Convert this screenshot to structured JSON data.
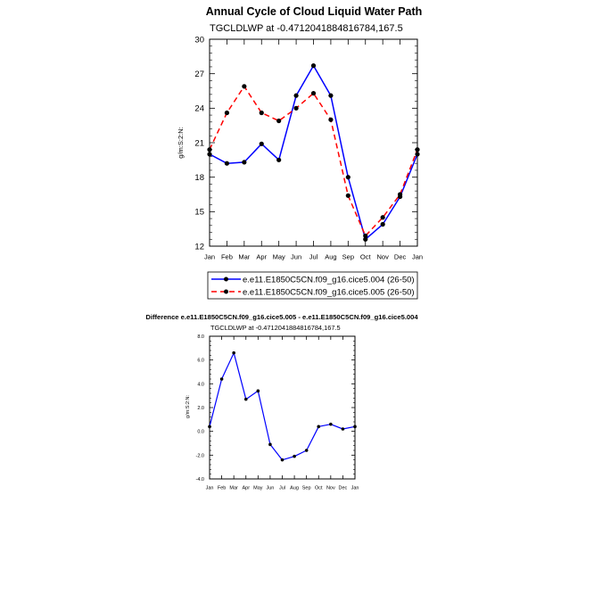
{
  "chart_data": [
    {
      "type": "line",
      "title": "Annual Cycle of Cloud Liquid Water Path",
      "subtitle": "TGCLDLWP at -0.4712041884816784,167.5",
      "xlabel": "",
      "ylabel": "g/m:S:2:N:",
      "categories": [
        "Jan",
        "Feb",
        "Mar",
        "Apr",
        "May",
        "Jun",
        "Jul",
        "Aug",
        "Sep",
        "Oct",
        "Nov",
        "Dec",
        "Jan"
      ],
      "ylim": [
        12,
        30
      ],
      "yticks": [
        12,
        15,
        18,
        21,
        24,
        27,
        30
      ],
      "ytick_labels": [
        "12",
        "15",
        "18",
        "21",
        "24",
        "27",
        "30"
      ],
      "series": [
        {
          "name": "e.e11.E1850C5CN.f09_g16.cice5.004 (26-50)",
          "color": "#0000ff",
          "dash": "solid",
          "values": [
            20.0,
            19.2,
            19.3,
            20.9,
            19.5,
            25.1,
            27.7,
            25.1,
            18.0,
            12.6,
            13.9,
            16.3,
            20.0
          ]
        },
        {
          "name": "e.e11.E1850C5CN.f09_g16.cice5.005 (26-50)",
          "color": "#ff0000",
          "dash": "dashed",
          "values": [
            20.4,
            23.6,
            25.9,
            23.6,
            22.9,
            24.0,
            25.3,
            23.0,
            16.4,
            12.9,
            14.5,
            16.5,
            20.4
          ]
        }
      ]
    },
    {
      "type": "line",
      "title": "Difference e.e11.E1850C5CN.f09_g16.cice5.005 - e.e11.E1850C5CN.f09_g16.cice5.004",
      "subtitle": "TGCLDLWP at -0.4712041884816784,167.5",
      "xlabel": "",
      "ylabel": "g/m:S:2:N:",
      "categories": [
        "Jan",
        "Feb",
        "Mar",
        "Apr",
        "May",
        "Jun",
        "Jul",
        "Aug",
        "Sep",
        "Oct",
        "Nov",
        "Dec",
        "Jan"
      ],
      "ylim": [
        -4.0,
        8.0
      ],
      "yticks": [
        -4,
        -2,
        0,
        2,
        4,
        6,
        8
      ],
      "ytick_labels": [
        "-4.0",
        "-2.0",
        "0.0",
        "2.0",
        "4.0",
        "6.0",
        "8.0"
      ],
      "series": [
        {
          "name": "Difference",
          "color": "#0000ff",
          "dash": "solid",
          "values": [
            0.4,
            4.4,
            6.6,
            2.7,
            3.4,
            -1.1,
            -2.4,
            -2.1,
            -1.6,
            0.4,
            0.6,
            0.2,
            0.4
          ]
        }
      ]
    }
  ]
}
